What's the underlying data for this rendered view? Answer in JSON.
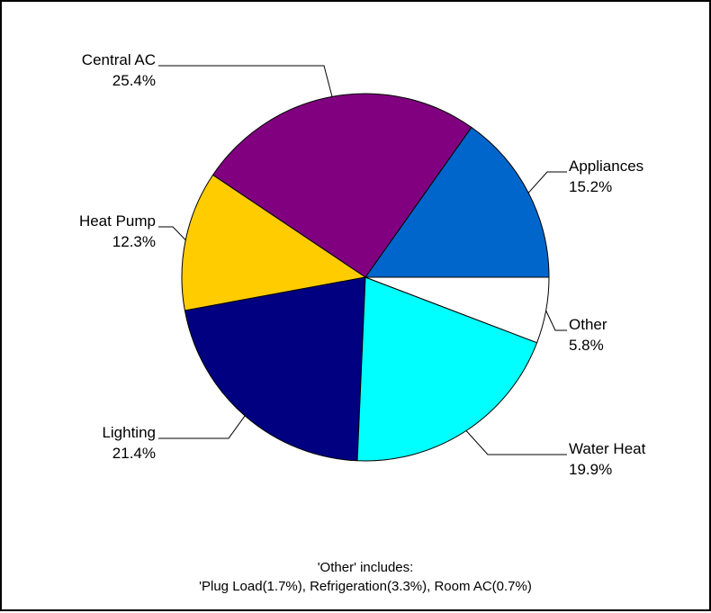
{
  "chart_data": {
    "type": "pie",
    "title": "",
    "start_angle_deg": 0,
    "direction": "counterclockwise",
    "series": [
      {
        "slices": [
          {
            "label": "Appliances",
            "value": 15.2,
            "display": "15.2%",
            "color": "#0066CC"
          },
          {
            "label": "Central AC",
            "value": 25.4,
            "display": "25.4%",
            "color": "#800080"
          },
          {
            "label": "Heat Pump",
            "value": 12.3,
            "display": "12.3%",
            "color": "#FFCC00"
          },
          {
            "label": "Lighting",
            "value": 21.4,
            "display": "21.4%",
            "color": "#000080"
          },
          {
            "label": "Water Heat",
            "value": 19.9,
            "display": "19.9%",
            "color": "#00FFFF"
          },
          {
            "label": "Other",
            "value": 5.8,
            "display": "5.8%",
            "color": "#FFFFFF"
          }
        ]
      }
    ],
    "footnote": {
      "line1": "'Other' includes:",
      "line2": "'Plug Load(1.7%), Refrigeration(3.3%), Room AC(0.7%)"
    },
    "border_color": "#000000",
    "label_line_color": "#000000"
  }
}
